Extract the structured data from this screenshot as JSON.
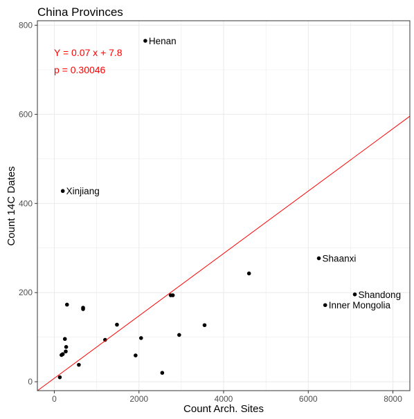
{
  "chart_data": {
    "type": "scatter",
    "title": "China Provinces",
    "xlabel": "Count Arch. Sites",
    "ylabel": "Count 14C Dates",
    "xlim": [
      -400,
      8400
    ],
    "ylim": [
      -20,
      810
    ],
    "x_ticks": [
      0,
      2000,
      4000,
      6000,
      8000
    ],
    "y_ticks": [
      0,
      200,
      400,
      600,
      800
    ],
    "grid": true,
    "points": [
      {
        "x": 2150,
        "y": 765,
        "label": "Henan"
      },
      {
        "x": 200,
        "y": 428,
        "label": "Xinjiang"
      },
      {
        "x": 6250,
        "y": 277,
        "label": "Shaanxi"
      },
      {
        "x": 7100,
        "y": 196,
        "label": "Shandong"
      },
      {
        "x": 6400,
        "y": 172,
        "label": "Inner Mongolia"
      },
      {
        "x": 4600,
        "y": 243,
        "label": ""
      },
      {
        "x": 2750,
        "y": 194,
        "label": ""
      },
      {
        "x": 2800,
        "y": 194,
        "label": ""
      },
      {
        "x": 300,
        "y": 173,
        "label": ""
      },
      {
        "x": 680,
        "y": 166,
        "label": ""
      },
      {
        "x": 680,
        "y": 163,
        "label": ""
      },
      {
        "x": 3550,
        "y": 127,
        "label": ""
      },
      {
        "x": 1480,
        "y": 128,
        "label": ""
      },
      {
        "x": 2950,
        "y": 105,
        "label": ""
      },
      {
        "x": 2050,
        "y": 98,
        "label": ""
      },
      {
        "x": 1200,
        "y": 94,
        "label": ""
      },
      {
        "x": 250,
        "y": 96,
        "label": ""
      },
      {
        "x": 280,
        "y": 78,
        "label": ""
      },
      {
        "x": 270,
        "y": 68,
        "label": ""
      },
      {
        "x": 200,
        "y": 62,
        "label": ""
      },
      {
        "x": 170,
        "y": 60,
        "label": ""
      },
      {
        "x": 1920,
        "y": 59,
        "label": ""
      },
      {
        "x": 580,
        "y": 38,
        "label": ""
      },
      {
        "x": 2550,
        "y": 20,
        "label": ""
      },
      {
        "x": 130,
        "y": 10,
        "label": ""
      }
    ],
    "regression": {
      "slope": 0.07,
      "intercept": 7.8
    },
    "annotations": [
      "Y =  0.07 x + 7.8",
      "p = 0.30046"
    ],
    "colors": {
      "points": "#000000",
      "line": "#ff0000",
      "annotation": "#ff0000",
      "grid": "#ebebeb",
      "panel_border": "#333333"
    }
  }
}
